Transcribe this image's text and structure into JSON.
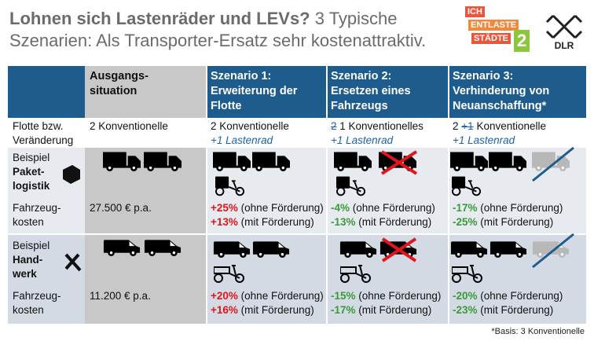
{
  "header": {
    "title_bold": "Lohnen sich Lastenräder und LEVs?",
    "title_rest": "3 Typische Szenarien: Als Transporter-Ersatz sehr kostenattraktiv."
  },
  "logo": {
    "lines": [
      "ICH",
      "ENTLASTE",
      "STÄDTE"
    ],
    "number": "2",
    "dlr": "DLR"
  },
  "table": {
    "columns": [
      [
        "Ausgangs-",
        "situation"
      ],
      [
        "Szenario 1:",
        "Erweiterung der",
        "Flotte"
      ],
      [
        "Szenario 2:",
        "Ersetzen eines",
        "Fahrzeugs"
      ],
      [
        "Szenario 3:",
        "Verhinderung von",
        "Neuanschaffung*"
      ]
    ],
    "fleet": {
      "label": [
        "Flotte bzw.",
        "Veränderung"
      ],
      "baseline": "2 Konventionelle",
      "scenario1": {
        "line1": "2 Konventionelle",
        "line2": "+1 Lastenrad"
      },
      "scenario2": {
        "struck": "2",
        "rest": "1 Konventionelles",
        "line2": "+1 Lastenrad"
      },
      "scenario3": {
        "pre": "2",
        "struck": "+1",
        "rest": "Konventionelle",
        "line2": "+1 Lastenrad"
      }
    },
    "parcel": {
      "label": [
        "Beispiel",
        "Paket-",
        "logistik"
      ],
      "cost_label": [
        "Fahrzeug-",
        "kosten"
      ],
      "baseline": "27.500 € p.a.",
      "scenarios": [
        [
          {
            "value": "+25%",
            "text": "(ohne Förderung)"
          },
          {
            "value": "+13%",
            "text": "(mit Förderung)"
          }
        ],
        [
          {
            "value": "-4%",
            "text": "(ohne Förderung)"
          },
          {
            "value": "-13%",
            "text": "(mit Förderung)"
          }
        ],
        [
          {
            "value": "-17%",
            "text": "(ohne Förderung)"
          },
          {
            "value": "-25%",
            "text": "(mit Förderung)"
          }
        ]
      ]
    },
    "craft": {
      "label": [
        "Beispiel",
        "Hand-",
        "werk"
      ],
      "cost_label": [
        "Fahrzeug-",
        "kosten"
      ],
      "baseline": "11.200 € p.a.",
      "scenarios": [
        [
          {
            "value": "+20%",
            "text": "(ohne Förderung)"
          },
          {
            "value": "+16%",
            "text": "(mit Förderung)"
          }
        ],
        [
          {
            "value": "-15%",
            "text": "(ohne Förderung)"
          },
          {
            "value": "-17%",
            "text": "(mit Förderung)"
          }
        ],
        [
          {
            "value": "-20%",
            "text": "(ohne Förderung)"
          },
          {
            "value": "-23%",
            "text": "(mit Förderung)"
          }
        ]
      ]
    }
  },
  "footnote": "*Basis: 3 Konventionelle"
}
